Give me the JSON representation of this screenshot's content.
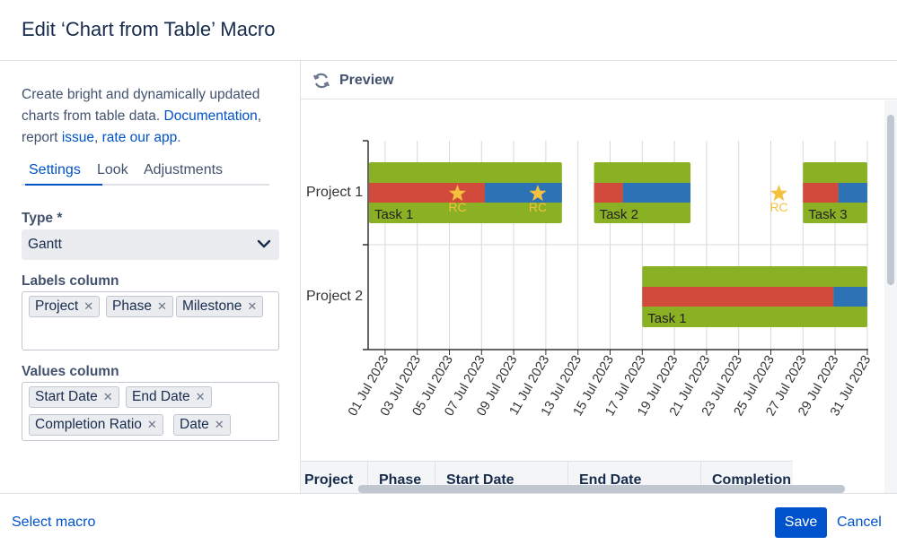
{
  "dialog": {
    "title": "Edit ‘Chart from Table’ Macro"
  },
  "sidebar": {
    "intro_text": "Create bright and dynamically updated charts from table data.",
    "doc_link": "Documentation",
    "report_text": "report",
    "issue_link": "issue",
    "rate_link": "rate our app",
    "tabs": [
      "Settings",
      "Look",
      "Adjustments"
    ],
    "type_label": "Type *",
    "type_value": "Gantt",
    "labels_label": "Labels column",
    "labels_chips": [
      "Project",
      "Phase",
      "Milestone"
    ],
    "values_label": "Values column",
    "values_chips": [
      "Start Date",
      "End Date",
      "Completion Ratio",
      "Date"
    ]
  },
  "preview": {
    "label": "Preview",
    "table_headers": [
      "Project",
      "Phase",
      "Start Date",
      "End Date",
      "Completion"
    ]
  },
  "colors": {
    "accent": "#0052cc",
    "bar_green": "#8ab024",
    "bar_red": "#d24a3b",
    "bar_blue": "#2e72b6",
    "milestone": "#f4c13d"
  },
  "chart_data": {
    "type": "gantt",
    "categories": [
      "Project 1",
      "Project 2"
    ],
    "x_start": "2023-06-30",
    "x_end": "2023-07-31",
    "x_ticks": [
      "01 Jul 2023",
      "03 Jul 2023",
      "05 Jul 2023",
      "07 Jul 2023",
      "09 Jul 2023",
      "11 Jul 2023",
      "13 Jul 2023",
      "15 Jul 2023",
      "17 Jul 2023",
      "19 Jul 2023",
      "21 Jul 2023",
      "23 Jul 2023",
      "25 Jul 2023",
      "27 Jul 2023",
      "29 Jul 2023",
      "31 Jul 2023"
    ],
    "tasks": [
      {
        "project": "Project 1",
        "phase": "Task 1",
        "start": 0,
        "end": 12,
        "completion": 0.6
      },
      {
        "project": "Project 1",
        "phase": "Task 2",
        "start": 14,
        "end": 20,
        "completion": 0.3
      },
      {
        "project": "Project 1",
        "phase": "Task 3",
        "start": 27,
        "end": 31,
        "completion": 0.55
      },
      {
        "project": "Project 2",
        "phase": "Task 1",
        "start": 17,
        "end": 31,
        "completion": 0.85
      }
    ],
    "milestones": [
      {
        "project": "Project 1",
        "label": "RC",
        "day": 5.5
      },
      {
        "project": "Project 1",
        "label": "RC",
        "day": 10.5
      },
      {
        "project": "Project 1",
        "label": "RC",
        "day": 25.5
      }
    ]
  },
  "footer": {
    "select_macro": "Select macro",
    "save": "Save",
    "cancel": "Cancel"
  }
}
